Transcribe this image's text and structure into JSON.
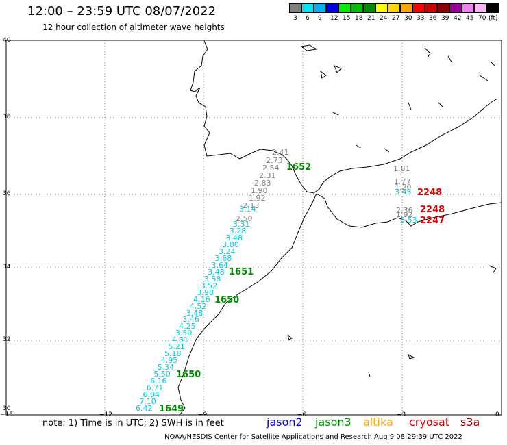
{
  "title": "12:00 – 23:59 UTC 08/07/2022",
  "subtitle": "12 hour collection of altimeter wave heights",
  "note": "note: 1) Time is in UTC; 2) SWH is in feet",
  "footer": "NOAA/NESDIS Center for Satellite Applications and Research    Aug  9 08:29:39 UTC 2022",
  "legend": {
    "unit": "(ft)",
    "labels": [
      "3",
      "6",
      "9",
      "12",
      "15",
      "18",
      "21",
      "24",
      "27",
      "30",
      "33",
      "36",
      "39",
      "42",
      "45",
      "70"
    ],
    "colors": [
      "#808080",
      "#00e5ee",
      "#00b2ee",
      "#0000ee",
      "#00ee00",
      "#00c000",
      "#008b00",
      "#ffff00",
      "#ffd700",
      "#ffa500",
      "#ff0000",
      "#cd0000",
      "#8b0000",
      "#9a009a",
      "#ee82ee",
      "#ffb6f0",
      "#000000"
    ]
  },
  "satellites": [
    {
      "name": "jason2",
      "color": "#0000dd"
    },
    {
      "name": "jason3",
      "color": "#008b00"
    },
    {
      "name": "altika",
      "color": "#ffa500"
    },
    {
      "name": "cryosat",
      "color": "#dd0000"
    },
    {
      "name": "s3a",
      "color": "#8b0000"
    }
  ],
  "axes": {
    "lon_ticks": [
      "−15",
      "−12",
      "−9",
      "−6",
      "−3",
      "0"
    ],
    "lat_ticks": [
      "40",
      "38",
      "36",
      "34",
      "32",
      "30"
    ]
  },
  "track": {
    "gray": [
      "2.41",
      "2.73",
      "2.54",
      "2.31",
      "2.83",
      "1.90",
      "1.92",
      "2.13",
      "2.50"
    ],
    "cyan": [
      "3.14",
      "3.31",
      "3.28",
      "3.48",
      "3.80",
      "3.24",
      "3.68",
      "3.64",
      "3.48",
      "3.58",
      "3.52",
      "3.98",
      "4.16",
      "4.52",
      "3.48",
      "3.46",
      "4.25",
      "3.50",
      "4.31",
      "5.21",
      "5.18",
      "4.95",
      "5.34",
      "5.50",
      "6.16",
      "6.71",
      "6.04",
      "7.10",
      "6.42"
    ]
  },
  "med_gray": [
    "1.81",
    "1.77",
    "1.20",
    "2.36",
    "1.92"
  ],
  "med_cyan": [
    "3.45",
    "3.53"
  ],
  "times_green": [
    "1652",
    "1651",
    "1650",
    "1650",
    "1649"
  ],
  "times_red": [
    "2248",
    "2248",
    "2247"
  ]
}
